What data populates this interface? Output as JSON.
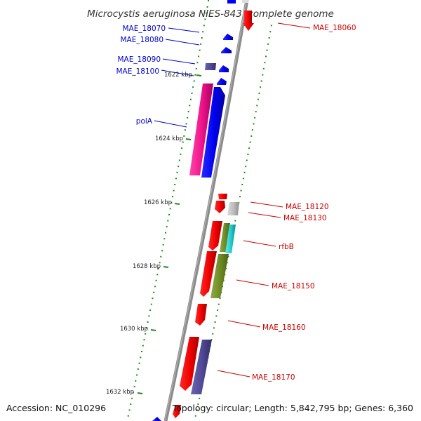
{
  "title": "Microcystis aeruginosa NIES-843, complete genome",
  "footer": {
    "accession": "Accession: NC_010296",
    "topology": "Topology: circular; Length: 5,842,795 bp; Genes: 6,360"
  },
  "colors": {
    "left_label": "#0000cc",
    "right_label": "#cc0000",
    "axis": "#808080",
    "ticks": "#228822"
  },
  "ticks": [
    {
      "label": "1622 kbp"
    },
    {
      "label": "1624 kbp"
    },
    {
      "label": "1626 kbp"
    },
    {
      "label": "1628 kbp"
    },
    {
      "label": "1630 kbp"
    },
    {
      "label": "1632 kbp"
    }
  ],
  "genes_left": [
    {
      "label": "MAE_18070"
    },
    {
      "label": "MAE_18080"
    },
    {
      "label": "MAE_18090"
    },
    {
      "label": "MAE_18100"
    },
    {
      "label": "polA"
    }
  ],
  "genes_right": [
    {
      "label": "MAE_18060"
    },
    {
      "label": "MAE_18120"
    },
    {
      "label": "MAE_18130"
    },
    {
      "label": "rfbB"
    },
    {
      "label": "MAE_18150"
    },
    {
      "label": "MAE_18160"
    },
    {
      "label": "MAE_18170"
    }
  ]
}
